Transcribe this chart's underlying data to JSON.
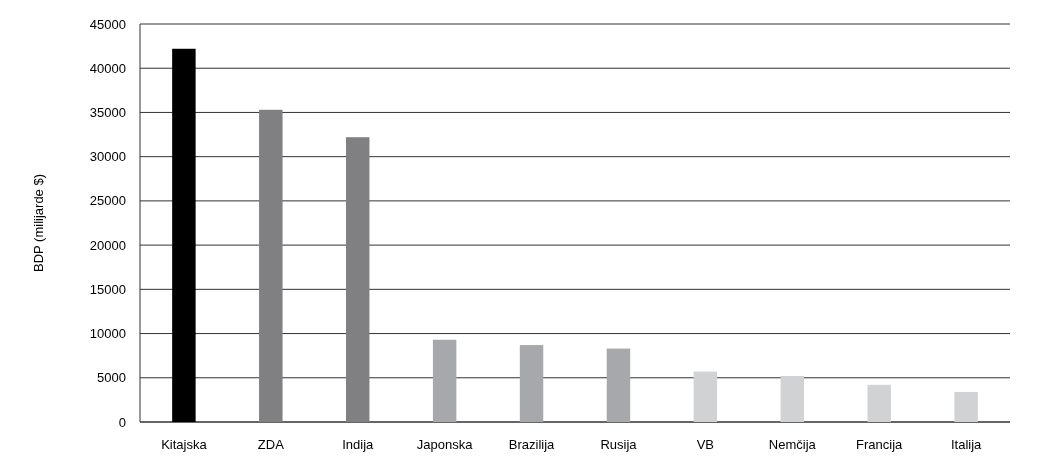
{
  "chart_data": {
    "type": "bar",
    "ylabel": "BDP (milijarde $)",
    "categories": [
      "Kitajska",
      "ZDA",
      "Indija",
      "Japonska",
      "Brazilija",
      "Rusija",
      "VB",
      "Nemčija",
      "Francija",
      "Italija"
    ],
    "values": [
      42200,
      35300,
      32200,
      9300,
      8700,
      8300,
      5700,
      5200,
      4200,
      3400
    ],
    "colors": [
      "#000000",
      "#808083",
      "#808083",
      "#a7a8ab",
      "#a7a8ab",
      "#a7a8ab",
      "#d1d2d4",
      "#d1d2d4",
      "#d1d2d4",
      "#d1d2d4"
    ],
    "ylim": [
      0,
      45000
    ],
    "yticks": [
      0,
      5000,
      10000,
      15000,
      20000,
      25000,
      30000,
      35000,
      40000,
      45000
    ],
    "grid": "y"
  }
}
